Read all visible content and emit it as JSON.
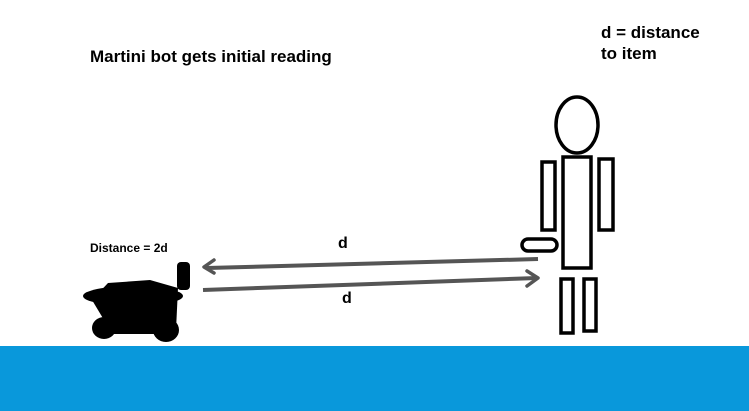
{
  "title": "Martini bot gets initial reading",
  "legend": {
    "line1": "d = distance",
    "line2": "to item"
  },
  "robot_reading": "Distance = 2d",
  "arrows": {
    "outgoing_label": "d",
    "return_label": "d"
  },
  "colors": {
    "floor": "#0998DB",
    "ink": "#000000",
    "arrow": "#555555",
    "background": "#FFFFFF"
  },
  "icons": {
    "robot": "robot-icon",
    "person": "person-stick-figure-icon"
  }
}
